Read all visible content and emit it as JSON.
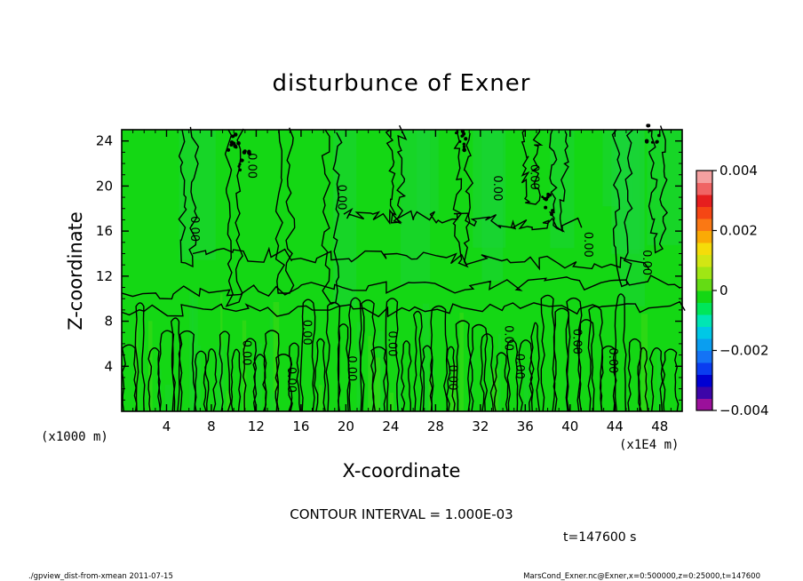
{
  "chart_data": {
    "type": "heatmap",
    "title": "disturbunce of Exner",
    "xlabel": "X-coordinate",
    "ylabel": "Z-coordinate",
    "x_unit": "(x1E4 m)",
    "y_unit": "(x1000 m)",
    "xlim": [
      0,
      50
    ],
    "ylim": [
      0,
      25
    ],
    "x_ticks": [
      4,
      8,
      12,
      16,
      20,
      24,
      28,
      32,
      36,
      40,
      44,
      48
    ],
    "y_ticks": [
      4,
      8,
      12,
      16,
      20,
      24
    ],
    "colorbar": {
      "min": -0.004,
      "max": 0.004,
      "tick_values": [
        0.004,
        0.002,
        0,
        -0.002,
        -0.004
      ],
      "tick_labels": [
        "0.004",
        "0.002",
        "0",
        "−0.002",
        "−0.004"
      ],
      "colors": [
        "#9b109b",
        "#3c05a8",
        "#0000d2",
        "#0a3cf0",
        "#1473f5",
        "#0a9ef0",
        "#00c8e6",
        "#00e6b4",
        "#00e65a",
        "#14d714",
        "#64dc14",
        "#a0e614",
        "#d2e614",
        "#f5dc0a",
        "#faaa05",
        "#fa7814",
        "#f54614",
        "#e61e1e",
        "#f06464",
        "#f5a0a0"
      ],
      "field_color": "#14d714"
    },
    "contour_labels": [
      {
        "text": "0.00",
        "x": 6.2,
        "z": 16.2
      },
      {
        "text": "0.00",
        "x": 11.3,
        "z": 21.8
      },
      {
        "text": "0.00",
        "x": 19.3,
        "z": 19.0
      },
      {
        "text": "0.00",
        "x": 33.2,
        "z": 19.8
      },
      {
        "text": "0.00",
        "x": 36.5,
        "z": 20.8
      },
      {
        "text": "0.00",
        "x": 41.3,
        "z": 14.8
      },
      {
        "text": "0.00",
        "x": 46.5,
        "z": 13.2
      },
      {
        "text": "0.00",
        "x": 10.8,
        "z": 5.2
      },
      {
        "text": "0.00",
        "x": 14.8,
        "z": 2.8
      },
      {
        "text": "0.00",
        "x": 16.2,
        "z": 7.0
      },
      {
        "text": "0.00",
        "x": 20.2,
        "z": 3.8
      },
      {
        "text": "0.00",
        "x": 23.8,
        "z": 6.0
      },
      {
        "text": "0.00",
        "x": 29.2,
        "z": 3.0
      },
      {
        "text": "0.00",
        "x": 34.2,
        "z": 6.5
      },
      {
        "text": "0.00",
        "x": 35.2,
        "z": 4.0
      },
      {
        "text": "0.00",
        "x": 40.3,
        "z": 6.2
      },
      {
        "text": "0.00",
        "x": 43.5,
        "z": 4.5
      }
    ]
  },
  "contour_interval": "CONTOUR INTERVAL = 1.000E-03",
  "time_label": "t=147600 s",
  "footer": {
    "left": "./gpview_dist-from-xmean  2011-07-15",
    "right": "MarsCond_Exner.nc@Exner,x=0:500000,z=0:25000,t=147600"
  }
}
